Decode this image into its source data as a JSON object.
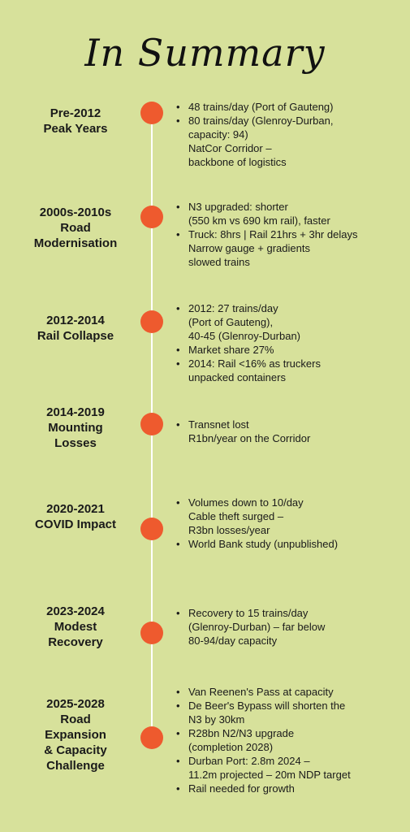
{
  "title": "In Summary",
  "colors": {
    "background": "#d7e19b",
    "dot": "#ee5a2e",
    "line": "#ffffff"
  },
  "entries": [
    {
      "period": "Pre-2012\nPeak Years",
      "facts": [
        {
          "text": "48 trains/day (Port of Gauteng)",
          "bullet": true
        },
        {
          "text": "80 trains/day (Glenroy-Durban,\ncapacity: 94)",
          "bullet": true
        },
        {
          "text": "NatCor Corridor –\nbackbone of logistics",
          "bullet": false
        }
      ]
    },
    {
      "period": "2000s-2010s\nRoad\nModernisation",
      "facts": [
        {
          "text": "N3 upgraded: shorter\n(550 km vs 690 km rail), faster",
          "bullet": true
        },
        {
          "text": "Truck: 8hrs | Rail 21hrs + 3hr delays",
          "bullet": true
        },
        {
          "text": "Narrow gauge + gradients\nslowed trains",
          "bullet": false
        }
      ]
    },
    {
      "period": "2012-2014\nRail Collapse",
      "facts": [
        {
          "text": "2012: 27 trains/day\n(Port of Gauteng),\n40-45 (Glenroy-Durban)",
          "bullet": true
        },
        {
          "text": "Market share 27%",
          "bullet": true
        },
        {
          "text": "2014: Rail <16% as truckers\nunpacked containers",
          "bullet": true
        }
      ]
    },
    {
      "period": "2014-2019\nMounting\nLosses",
      "facts": [
        {
          "text": "Transnet lost\nR1bn/year on the Corridor",
          "bullet": true
        }
      ]
    },
    {
      "period": "2020-2021\nCOVID Impact",
      "facts": [
        {
          "text": "Volumes down to 10/day",
          "bullet": true
        },
        {
          "text": "Cable theft surged –\nR3bn losses/year",
          "bullet": false
        },
        {
          "text": "World Bank study (unpublished)",
          "bullet": true
        }
      ]
    },
    {
      "period": "2023-2024\nModest\nRecovery",
      "facts": [
        {
          "text": "Recovery to 15 trains/day\n(Glenroy-Durban) – far below\n80-94/day capacity",
          "bullet": true
        }
      ]
    },
    {
      "period": "2025-2028\nRoad\nExpansion\n& Capacity\nChallenge",
      "facts": [
        {
          "text": "Van Reenen's Pass at capacity",
          "bullet": true
        },
        {
          "text": "De Beer's Bypass will shorten the\nN3 by 30km",
          "bullet": true
        },
        {
          "text": "R28bn N2/N3 upgrade\n(completion 2028)",
          "bullet": true
        },
        {
          "text": "Durban Port: 2.8m 2024 –\n11.2m projected – 20m NDP target",
          "bullet": true
        },
        {
          "text": "Rail needed for growth",
          "bullet": true
        }
      ]
    }
  ]
}
